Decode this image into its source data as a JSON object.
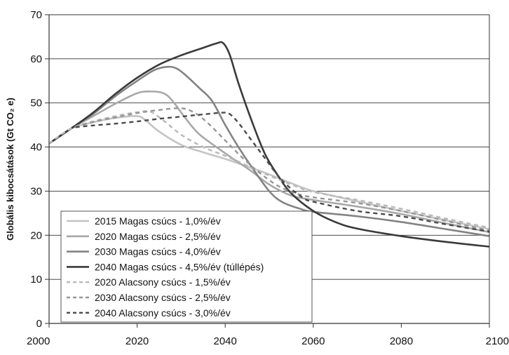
{
  "chart_data": {
    "type": "line",
    "title": "",
    "xlabel": "",
    "ylabel": "Globális kibocsátások (Gt CO₂ e)",
    "xlim": [
      2000,
      2100
    ],
    "ylim": [
      0,
      70
    ],
    "xticks": [
      2000,
      2020,
      2040,
      2060,
      2080,
      2100
    ],
    "yticks": [
      0,
      10,
      20,
      30,
      40,
      50,
      60,
      70
    ],
    "grid": "horizontal",
    "legend_position": "bottom-left",
    "series": [
      {
        "name": "2015 Magas csúcs - 1,0%/év",
        "color": "#c4c4c4",
        "dash": "solid",
        "points": [
          [
            2000,
            40.8
          ],
          [
            2005,
            44.2
          ],
          [
            2010,
            45.6
          ],
          [
            2015,
            46.6
          ],
          [
            2020,
            47.0
          ],
          [
            2022,
            46.0
          ],
          [
            2025,
            43.5
          ],
          [
            2030,
            40.5
          ],
          [
            2035,
            38.8
          ],
          [
            2040,
            37.3
          ],
          [
            2045,
            35.6
          ],
          [
            2050,
            33.8
          ],
          [
            2055,
            31.8
          ],
          [
            2060,
            30.0
          ],
          [
            2070,
            27.7
          ],
          [
            2080,
            25.5
          ],
          [
            2090,
            23.4
          ],
          [
            2100,
            21.4
          ]
        ]
      },
      {
        "name": "2020 Magas csúcs - 2,5%/év",
        "color": "#a8a8a8",
        "dash": "solid",
        "points": [
          [
            2000,
            40.8
          ],
          [
            2005,
            44.2
          ],
          [
            2010,
            47.0
          ],
          [
            2015,
            49.8
          ],
          [
            2020,
            52.2
          ],
          [
            2023,
            52.6
          ],
          [
            2026,
            52.2
          ],
          [
            2028,
            50.5
          ],
          [
            2031,
            46.5
          ],
          [
            2034,
            43.0
          ],
          [
            2038,
            40.0
          ],
          [
            2042,
            37.2
          ],
          [
            2046,
            34.5
          ],
          [
            2050,
            31.5
          ],
          [
            2055,
            29.0
          ],
          [
            2060,
            28.0
          ],
          [
            2070,
            26.5
          ],
          [
            2080,
            24.8
          ],
          [
            2090,
            22.7
          ],
          [
            2100,
            20.7
          ]
        ]
      },
      {
        "name": "2030 Magas csúcs - 4,0%/év",
        "color": "#838383",
        "dash": "solid",
        "points": [
          [
            2000,
            40.8
          ],
          [
            2005,
            44.2
          ],
          [
            2010,
            47.5
          ],
          [
            2015,
            51.5
          ],
          [
            2020,
            55.0
          ],
          [
            2024,
            57.5
          ],
          [
            2027,
            58.2
          ],
          [
            2029,
            57.8
          ],
          [
            2031,
            56.3
          ],
          [
            2034,
            53.5
          ],
          [
            2037,
            50.5
          ],
          [
            2040,
            45.0
          ],
          [
            2043,
            40.0
          ],
          [
            2046,
            35.5
          ],
          [
            2050,
            30.0
          ],
          [
            2053,
            27.5
          ],
          [
            2057,
            26.0
          ],
          [
            2060,
            25.3
          ],
          [
            2070,
            24.3
          ],
          [
            2080,
            23.0
          ],
          [
            2090,
            21.4
          ],
          [
            2100,
            19.8
          ]
        ]
      },
      {
        "name": "2040 Magas csúcs - 4,5%/év (túllépés)",
        "color": "#3a3a3a",
        "dash": "solid",
        "points": [
          [
            2000,
            40.8
          ],
          [
            2005,
            44.2
          ],
          [
            2010,
            47.8
          ],
          [
            2015,
            52.0
          ],
          [
            2020,
            55.7
          ],
          [
            2025,
            58.7
          ],
          [
            2030,
            60.8
          ],
          [
            2035,
            62.5
          ],
          [
            2038,
            63.5
          ],
          [
            2039.5,
            63.6
          ],
          [
            2041,
            61.0
          ],
          [
            2043,
            54.5
          ],
          [
            2046,
            46.0
          ],
          [
            2049,
            38.5
          ],
          [
            2052,
            33.5
          ],
          [
            2055,
            29.5
          ],
          [
            2060,
            25.5
          ],
          [
            2065,
            23.0
          ],
          [
            2070,
            21.5
          ],
          [
            2080,
            19.8
          ],
          [
            2090,
            18.5
          ],
          [
            2100,
            17.4
          ]
        ]
      },
      {
        "name": "2020 Alacsony csúcs - 1,5%/év",
        "color": "#b8b8b8",
        "dash": "dashed",
        "points": [
          [
            2000,
            40.8
          ],
          [
            2005,
            44.2
          ],
          [
            2010,
            45.8
          ],
          [
            2015,
            47.0
          ],
          [
            2020,
            47.9
          ],
          [
            2023,
            48.0
          ],
          [
            2026,
            46.0
          ],
          [
            2030,
            42.8
          ],
          [
            2035,
            40.0
          ],
          [
            2040,
            38.0
          ],
          [
            2045,
            35.8
          ],
          [
            2050,
            33.5
          ],
          [
            2055,
            31.5
          ],
          [
            2060,
            29.8
          ],
          [
            2070,
            28.0
          ],
          [
            2080,
            26.0
          ],
          [
            2090,
            23.8
          ],
          [
            2100,
            21.7
          ]
        ]
      },
      {
        "name": "2030 Alacsony csúcs - 2,5%/év",
        "color": "#969696",
        "dash": "dashed",
        "points": [
          [
            2006,
            44.5
          ],
          [
            2010,
            45.7
          ],
          [
            2015,
            46.7
          ],
          [
            2020,
            47.7
          ],
          [
            2025,
            48.4
          ],
          [
            2030,
            48.8
          ],
          [
            2033,
            47.8
          ],
          [
            2036,
            45.5
          ],
          [
            2040,
            41.5
          ],
          [
            2044,
            37.5
          ],
          [
            2048,
            34.0
          ],
          [
            2052,
            31.2
          ],
          [
            2056,
            29.5
          ],
          [
            2060,
            28.6
          ],
          [
            2070,
            27.3
          ],
          [
            2080,
            25.5
          ],
          [
            2090,
            23.3
          ],
          [
            2100,
            21.0
          ]
        ]
      },
      {
        "name": "2040 Alacsony csúcs - 3,0%/év",
        "color": "#4a4a4a",
        "dash": "dashed",
        "points": [
          [
            2006,
            44.5
          ],
          [
            2010,
            44.9
          ],
          [
            2015,
            45.3
          ],
          [
            2020,
            45.8
          ],
          [
            2025,
            46.4
          ],
          [
            2030,
            46.9
          ],
          [
            2035,
            47.4
          ],
          [
            2039.5,
            47.8
          ],
          [
            2041,
            47.5
          ],
          [
            2043,
            45.5
          ],
          [
            2046,
            41.5
          ],
          [
            2049,
            37.5
          ],
          [
            2052,
            33.5
          ],
          [
            2055,
            30.5
          ],
          [
            2058,
            28.3
          ],
          [
            2060,
            27.6
          ],
          [
            2070,
            25.5
          ],
          [
            2080,
            24.3
          ],
          [
            2090,
            22.5
          ],
          [
            2100,
            20.8
          ]
        ]
      }
    ]
  }
}
